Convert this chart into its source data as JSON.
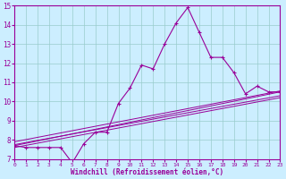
{
  "xlabel": "Windchill (Refroidissement éolien,°C)",
  "bg_color": "#cceeff",
  "line_color": "#990099",
  "grid_color": "#99cccc",
  "x_main": [
    0,
    1,
    2,
    3,
    4,
    5,
    6,
    7,
    8,
    9,
    10,
    11,
    12,
    13,
    14,
    15,
    16,
    17,
    18,
    19,
    20,
    21,
    22,
    23
  ],
  "y_main": [
    7.7,
    7.6,
    7.6,
    7.6,
    7.6,
    6.8,
    7.8,
    8.4,
    8.4,
    9.9,
    10.7,
    11.9,
    11.7,
    13.0,
    14.1,
    14.9,
    13.6,
    12.3,
    12.3,
    11.5,
    10.4,
    10.8,
    10.5,
    10.5
  ],
  "trend_lines": [
    [
      7.7,
      10.5
    ],
    [
      7.75,
      10.3
    ],
    [
      7.9,
      10.55
    ],
    [
      7.6,
      10.2
    ]
  ],
  "ylim": [
    7,
    15
  ],
  "xlim": [
    0,
    23
  ],
  "yticks": [
    7,
    8,
    9,
    10,
    11,
    12,
    13,
    14,
    15
  ],
  "xticks": [
    0,
    1,
    2,
    3,
    4,
    5,
    6,
    7,
    8,
    9,
    10,
    11,
    12,
    13,
    14,
    15,
    16,
    17,
    18,
    19,
    20,
    21,
    22,
    23
  ]
}
